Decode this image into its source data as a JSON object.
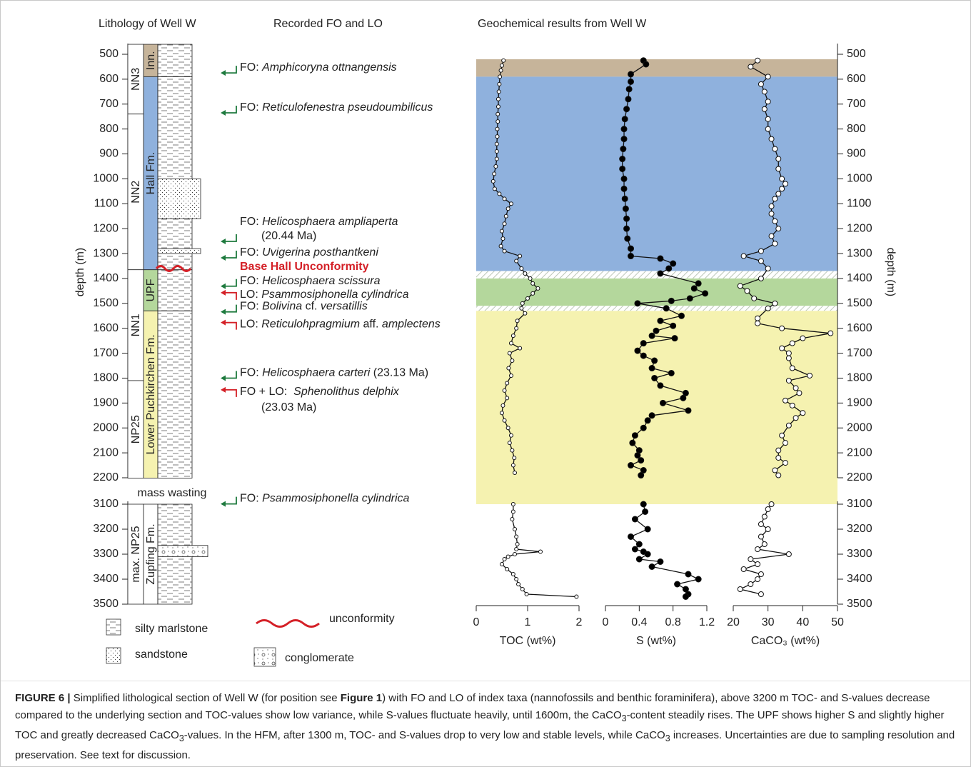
{
  "headers": {
    "lithology": "Lithology of Well W",
    "events": "Recorded FO and LO",
    "geochem": "Geochemical results from Well W"
  },
  "depth_axis": {
    "label": "depth (m)",
    "segments": [
      {
        "ylim": [
          500,
          2200
        ],
        "yticks": [
          500,
          600,
          700,
          800,
          900,
          1000,
          1100,
          1200,
          1300,
          1400,
          1500,
          1600,
          1700,
          1800,
          1900,
          2000,
          2100,
          2200
        ]
      },
      {
        "ylim": [
          3100,
          3500
        ],
        "yticks": [
          3100,
          3200,
          3300,
          3400,
          3500
        ]
      }
    ]
  },
  "facies_bands": [
    {
      "from": 520,
      "to": 590,
      "color": "#c6b49a"
    },
    {
      "from": 590,
      "to": 1370,
      "color": "#8fb1dd"
    },
    {
      "from": 1370,
      "to": 1400,
      "hatched": true
    },
    {
      "from": 1400,
      "to": 1510,
      "color": "#b4d79c"
    },
    {
      "from": 1510,
      "to": 1530,
      "hatched": true
    },
    {
      "from": 1530,
      "to": 3100,
      "color": "#f5f2b0"
    }
  ],
  "chart_data": [
    {
      "type": "line",
      "xlabel": "TOC (wt%)",
      "xlim": [
        0,
        2
      ],
      "xticks": [
        0,
        1,
        2
      ],
      "marker_fill": "#ffffff",
      "marker_size": 2.5,
      "depth": [
        525,
        545,
        565,
        590,
        620,
        650,
        680,
        710,
        740,
        770,
        800,
        830,
        860,
        890,
        920,
        950,
        980,
        1010,
        1040,
        1060,
        1080,
        1100,
        1120,
        1150,
        1180,
        1210,
        1240,
        1270,
        1290,
        1310,
        1330,
        1360,
        1380,
        1400,
        1420,
        1440,
        1460,
        1480,
        1500,
        1520,
        1540,
        1570,
        1600,
        1630,
        1660,
        1680,
        1700,
        1730,
        1760,
        1790,
        1820,
        1850,
        1880,
        1910,
        1940,
        1970,
        2000,
        2030,
        2060,
        2090,
        2120,
        2150,
        2180,
        null,
        3100,
        3130,
        3160,
        3200,
        3230,
        3260,
        3280,
        3290,
        3300,
        3310,
        3320,
        3340,
        3360,
        3380,
        3400,
        3420,
        3440,
        3460,
        3470
      ],
      "values": [
        0.53,
        0.5,
        0.48,
        0.46,
        0.45,
        0.44,
        0.43,
        0.43,
        0.42,
        0.42,
        0.41,
        0.41,
        0.4,
        0.4,
        0.4,
        0.38,
        0.35,
        0.33,
        0.36,
        0.45,
        0.55,
        0.68,
        0.62,
        0.58,
        0.55,
        0.5,
        0.52,
        0.48,
        0.55,
        0.85,
        0.78,
        0.88,
        0.95,
        1.05,
        1.1,
        1.2,
        1.1,
        1.0,
        0.9,
        0.88,
        0.95,
        0.8,
        0.78,
        0.72,
        0.68,
        0.85,
        0.65,
        0.7,
        0.63,
        0.68,
        0.6,
        0.55,
        0.6,
        0.52,
        0.5,
        0.55,
        0.62,
        0.68,
        0.65,
        0.7,
        0.74,
        0.72,
        0.75,
        null,
        0.72,
        0.72,
        0.7,
        0.75,
        0.78,
        0.8,
        0.78,
        1.25,
        0.75,
        0.62,
        0.55,
        0.5,
        0.6,
        0.72,
        0.78,
        0.82,
        0.9,
        0.98,
        1.95
      ]
    },
    {
      "type": "line",
      "xlabel": "S (wt%)",
      "xlim": [
        0,
        1.2
      ],
      "xticks": [
        0,
        0.4,
        0.8,
        1.2
      ],
      "marker_fill": "#000000",
      "marker_size": 4,
      "depth": [
        525,
        540,
        580,
        610,
        640,
        680,
        720,
        760,
        800,
        840,
        880,
        920,
        960,
        1000,
        1040,
        1080,
        1120,
        1160,
        1200,
        1240,
        1280,
        1310,
        1320,
        1340,
        1360,
        1380,
        1420,
        1440,
        1460,
        1480,
        1490,
        1500,
        1520,
        1550,
        1570,
        1590,
        1610,
        1630,
        1640,
        1660,
        1690,
        1710,
        1730,
        1760,
        1780,
        1800,
        1830,
        1860,
        1880,
        1900,
        1930,
        1950,
        1970,
        2000,
        2030,
        2060,
        2090,
        2110,
        2130,
        2150,
        2170,
        2190,
        null,
        3100,
        3130,
        3160,
        3200,
        3230,
        3260,
        3280,
        3290,
        3300,
        3320,
        3330,
        3350,
        3380,
        3400,
        3420,
        3440,
        3460,
        3470
      ],
      "values": [
        0.45,
        0.48,
        0.3,
        0.3,
        0.28,
        0.27,
        0.25,
        0.23,
        0.22,
        0.22,
        0.21,
        0.2,
        0.2,
        0.22,
        0.22,
        0.23,
        0.24,
        0.25,
        0.25,
        0.26,
        0.3,
        0.3,
        0.65,
        0.8,
        0.75,
        0.65,
        1.1,
        1.05,
        1.18,
        1.0,
        0.78,
        0.38,
        0.72,
        0.9,
        0.65,
        0.8,
        0.6,
        0.55,
        0.82,
        0.45,
        0.38,
        0.45,
        0.58,
        0.55,
        0.78,
        0.58,
        0.65,
        0.95,
        0.92,
        0.68,
        0.98,
        0.55,
        0.5,
        0.45,
        0.35,
        0.32,
        0.4,
        0.38,
        0.42,
        0.3,
        0.45,
        0.42,
        null,
        0.45,
        0.47,
        0.35,
        0.5,
        0.3,
        0.4,
        0.35,
        0.45,
        0.5,
        0.4,
        0.65,
        0.55,
        0.98,
        1.1,
        0.85,
        0.95,
        0.98,
        0.95
      ]
    },
    {
      "type": "line",
      "xlabel": "CaCO₃ (wt%)",
      "xlim": [
        20,
        50
      ],
      "xticks": [
        20,
        30,
        40,
        50
      ],
      "marker_fill": "#ffffff",
      "marker_size": 3.5,
      "depth": [
        525,
        550,
        590,
        620,
        650,
        690,
        720,
        760,
        800,
        840,
        880,
        920,
        960,
        1000,
        1020,
        1040,
        1060,
        1080,
        1110,
        1140,
        1170,
        1200,
        1230,
        1260,
        1290,
        1310,
        1330,
        1360,
        1400,
        1430,
        1450,
        1480,
        1500,
        1520,
        1560,
        1580,
        1600,
        1620,
        1640,
        1660,
        1680,
        1700,
        1720,
        1760,
        1790,
        1810,
        1840,
        1860,
        1890,
        1910,
        1940,
        1960,
        1990,
        2030,
        2060,
        2090,
        2120,
        2140,
        2170,
        2190,
        null,
        3100,
        3120,
        3150,
        3180,
        3200,
        3230,
        3260,
        3280,
        3300,
        3320,
        3340,
        3360,
        3380,
        3400,
        3420,
        3440,
        3460
      ],
      "values": [
        27,
        25,
        30,
        28,
        29,
        30,
        29,
        30,
        30,
        31,
        32,
        33,
        33,
        34,
        35,
        34,
        33,
        32,
        31,
        31,
        32,
        33,
        31,
        32,
        28,
        23,
        28,
        30,
        28,
        22,
        24,
        26,
        32,
        30,
        27,
        27,
        34,
        48,
        40,
        37,
        34,
        36,
        36,
        37,
        42,
        36,
        38,
        39,
        35,
        37,
        40,
        38,
        36,
        34,
        35,
        33,
        33,
        35,
        32,
        33,
        null,
        31,
        30,
        29,
        28,
        30,
        28,
        29,
        27,
        36,
        25,
        27,
        23,
        28,
        27,
        25,
        22,
        28
      ]
    }
  ],
  "lithology": {
    "nannozones": [
      {
        "label": "NN3",
        "from": 460,
        "to": 740
      },
      {
        "label": "NN2",
        "from": 740,
        "to": 1365
      },
      {
        "label": "NN1",
        "from": 1365,
        "to": 1810
      },
      {
        "label": "NP25",
        "from": 1810,
        "to": 2210
      },
      {
        "label": "max. NP25",
        "from": 3100,
        "to": 3500
      }
    ],
    "formations": [
      {
        "label": "Inn.",
        "from": 460,
        "to": 590,
        "color": "#c6b49a"
      },
      {
        "label": "Hall Fm.",
        "from": 590,
        "to": 1365,
        "color": "#8fb1dd"
      },
      {
        "label": "UPF",
        "from": 1365,
        "to": 1530,
        "color": "#b4d79c"
      },
      {
        "label": "Lower Puchkirchen Fm.",
        "from": 1530,
        "to": 2210,
        "color": "#f5f2b0"
      },
      {
        "label": "Zupfing Fm.",
        "from": 3100,
        "to": 3500,
        "color": "#ffffff"
      }
    ],
    "beds": [
      {
        "rock": "sandstone",
        "from": 1000,
        "to": 1160
      },
      {
        "rock": "sandstone",
        "from": 1280,
        "to": 1300
      },
      {
        "rock": "conglomerate",
        "from": 3265,
        "to": 3310
      }
    ],
    "unconformity_depth": 1360,
    "note": "mass wasting"
  },
  "events": [
    {
      "depth": 575,
      "color": "#1e7a3e",
      "hook": "up",
      "lines": [
        [
          {
            "text": "FO: "
          },
          {
            "text": "Amphicoryna ottnangensis",
            "italic": true
          }
        ]
      ]
    },
    {
      "depth": 735,
      "color": "#1e7a3e",
      "hook": "up",
      "lines": [
        [
          {
            "text": "FO: "
          },
          {
            "text": "Reticulofenestra pseudoumbilicus",
            "italic": true
          }
        ]
      ]
    },
    {
      "depth": 1251,
      "color": "#1e7a3e",
      "hook": "up",
      "lines": [
        [
          {
            "text": "FO: "
          },
          {
            "text": "Helicosphaera ampliaperta",
            "italic": true
          }
        ],
        [
          {
            "text": "(20.44 Ma)"
          }
        ]
      ]
    },
    {
      "depth": 1317,
      "color": "#1e7a3e",
      "hook": "up",
      "lines": [
        [
          {
            "text": "FO: "
          },
          {
            "text": "Uvigerina posthantkeni",
            "italic": true
          }
        ]
      ]
    },
    {
      "depth": 1354,
      "color": "#d42027",
      "bold": true,
      "lines": [
        [
          {
            "text": "Base Hall Unconformity"
          }
        ]
      ]
    },
    {
      "depth": 1431,
      "color": "#1e7a3e",
      "hook": "up",
      "lines": [
        [
          {
            "text": "FO: "
          },
          {
            "text": "Helicosphaera scissura",
            "italic": true
          }
        ]
      ]
    },
    {
      "depth": 1457,
      "color": "#d42027",
      "hook": "down",
      "lines": [
        [
          {
            "text": "LO: "
          },
          {
            "text": "Psammosiphonella cylindrica",
            "italic": true
          }
        ]
      ]
    },
    {
      "depth": 1534,
      "color": "#1e7a3e",
      "hook": "up",
      "lines": [
        [
          {
            "text": "FO: "
          },
          {
            "text": "Bolivina",
            "italic": true
          },
          {
            "text": " cf. "
          },
          {
            "text": "versatillis",
            "italic": true
          }
        ]
      ]
    },
    {
      "depth": 1577,
      "color": "#d42027",
      "hook": "down",
      "lines": [
        [
          {
            "text": "LO: "
          },
          {
            "text": "Reticulohpragmium",
            "italic": true
          },
          {
            "text": " aff. "
          },
          {
            "text": "amplectens",
            "italic": true
          }
        ]
      ]
    },
    {
      "depth": 1800,
      "color": "#1e7a3e",
      "hook": "up",
      "lines": [
        [
          {
            "text": "FO: "
          },
          {
            "text": "Helicosphaera carteri",
            "italic": true
          },
          {
            "text": " (23.13 Ma)"
          }
        ]
      ]
    },
    {
      "depth": 1847,
      "color": "#d42027",
      "hook": "down",
      "lines": [
        [
          {
            "text": "FO + LO:  "
          },
          {
            "text": "Sphenolithus delphix",
            "italic": true
          }
        ],
        [
          {
            "text": "(23.03 Ma)"
          }
        ]
      ]
    },
    {
      "depth": 3090,
      "color": "#1e7a3e",
      "hook": "up",
      "lines": [
        [
          {
            "text": "FO: "
          },
          {
            "text": "Psammosiphonella cylindrica",
            "italic": true
          }
        ]
      ]
    }
  ],
  "legend": [
    {
      "label": "silty marlstone"
    },
    {
      "label": "sandstone"
    },
    {
      "label": "unconformity",
      "color": "#d42027"
    },
    {
      "label": "conglomerate"
    }
  ],
  "caption": [
    {
      "text": "FIGURE 6 |",
      "bold": true
    },
    {
      "text": " Simplified lithological section of Well W (for position see "
    },
    {
      "text": "Figure 1",
      "bold": true
    },
    {
      "text": ") with FO and LO of index taxa (nannofossils and benthic foraminifera), above 3200 m TOC- and S-values decrease compared to the underlying section and TOC-values show low variance, while S-values fluctuate heavily, until 1600m, the CaCO"
    },
    {
      "text": "3",
      "sub": true
    },
    {
      "text": "-content steadily rises. The UPF shows higher S and slightly higher TOC and greatly decreased CaCO"
    },
    {
      "text": "3",
      "sub": true
    },
    {
      "text": "-values. In the HFM, after 1300 m, TOC- and S-values drop to very low and stable levels, while CaCO"
    },
    {
      "text": "3",
      "sub": true
    },
    {
      "text": " increases. Uncertainties are due to sampling resolution and preservation. See text for discussion."
    }
  ]
}
